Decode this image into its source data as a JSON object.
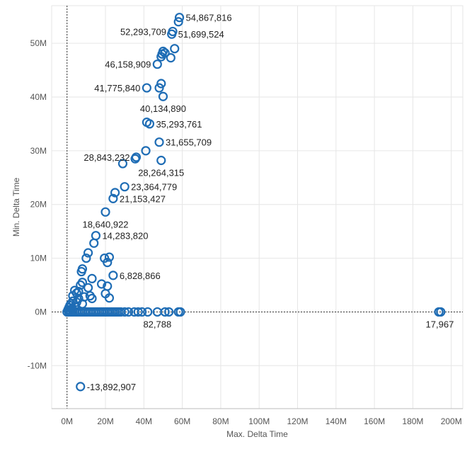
{
  "chart_data": {
    "type": "scatter",
    "title": "",
    "xlabel": "Max. Delta Time",
    "ylabel": "Min. Delta Time",
    "xlim": [
      -8,
      206
    ],
    "ylim": [
      -18,
      57
    ],
    "units": "M",
    "x_ticks": [
      "0M",
      "20M",
      "40M",
      "60M",
      "80M",
      "100M",
      "120M",
      "140M",
      "160M",
      "180M",
      "200M"
    ],
    "x_tick_values": [
      0,
      20,
      40,
      60,
      80,
      100,
      120,
      140,
      160,
      180,
      200
    ],
    "y_ticks": [
      "-10M",
      "0M",
      "10M",
      "20M",
      "30M",
      "40M",
      "50M"
    ],
    "y_tick_values": [
      -10,
      0,
      10,
      20,
      30,
      40,
      50
    ],
    "grid": true,
    "zero_lines": "dotted",
    "marker": "hollow-circle",
    "series": [
      {
        "color": "#1f6db5",
        "points": [
          [
            58.5,
            54.8
          ],
          [
            58,
            54.0
          ],
          [
            55,
            52.2
          ],
          [
            54.5,
            51.7
          ],
          [
            56,
            49.0
          ],
          [
            50,
            48.5
          ],
          [
            49.5,
            48.0
          ],
          [
            51,
            48.2
          ],
          [
            49,
            47.5
          ],
          [
            54,
            47.3
          ],
          [
            47,
            46.1
          ],
          [
            49,
            42.5
          ],
          [
            48,
            41.7
          ],
          [
            41.5,
            41.7
          ],
          [
            50,
            40.1
          ],
          [
            41.5,
            35.3
          ],
          [
            43,
            35.0
          ],
          [
            48,
            31.6
          ],
          [
            41,
            30.0
          ],
          [
            36,
            28.8
          ],
          [
            35.5,
            28.5
          ],
          [
            49,
            28.2
          ],
          [
            29,
            27.6
          ],
          [
            30,
            23.3
          ],
          [
            25,
            22.2
          ],
          [
            24,
            21.1
          ],
          [
            20,
            18.6
          ],
          [
            15,
            14.2
          ],
          [
            14,
            12.8
          ],
          [
            11,
            11.0
          ],
          [
            10,
            10.0
          ],
          [
            22,
            10.2
          ],
          [
            19.5,
            10.0
          ],
          [
            21,
            9.2
          ],
          [
            8,
            8.0
          ],
          [
            7.5,
            7.5
          ],
          [
            24,
            6.8
          ],
          [
            13,
            6.2
          ],
          [
            8,
            5.5
          ],
          [
            7,
            5.0
          ],
          [
            18,
            5.2
          ],
          [
            21,
            4.8
          ],
          [
            11,
            4.5
          ],
          [
            4,
            4.0
          ],
          [
            6,
            3.8
          ],
          [
            20,
            3.4
          ],
          [
            12,
            3.0
          ],
          [
            5,
            3.5
          ],
          [
            3,
            3.0
          ],
          [
            6,
            2.5
          ],
          [
            9,
            2.8
          ],
          [
            13,
            2.5
          ],
          [
            22,
            2.6
          ],
          [
            3,
            2.0
          ],
          [
            5,
            1.8
          ],
          [
            8,
            1.5
          ],
          [
            2,
            1.5
          ],
          [
            1.5,
            1.2
          ],
          [
            4,
            1.0
          ],
          [
            1,
            0.8
          ],
          [
            2.5,
            0.6
          ],
          [
            0.5,
            0.4
          ],
          [
            1.5,
            0.3
          ],
          [
            3,
            0.2
          ],
          [
            0,
            0
          ],
          [
            1,
            0
          ],
          [
            2,
            0
          ],
          [
            3,
            0
          ],
          [
            4,
            0
          ],
          [
            5,
            0
          ],
          [
            6,
            0
          ],
          [
            7,
            0
          ],
          [
            8,
            0
          ],
          [
            9,
            0
          ],
          [
            10,
            0
          ],
          [
            11,
            0
          ],
          [
            12,
            0
          ],
          [
            13,
            0
          ],
          [
            14,
            0
          ],
          [
            15,
            0
          ],
          [
            16,
            0
          ],
          [
            17,
            0
          ],
          [
            18,
            0
          ],
          [
            19,
            0
          ],
          [
            20,
            0
          ],
          [
            21,
            0
          ],
          [
            22,
            0
          ],
          [
            23,
            0
          ],
          [
            24,
            0
          ],
          [
            25,
            0
          ],
          [
            26,
            0
          ],
          [
            27,
            0
          ],
          [
            28,
            0
          ],
          [
            30,
            0
          ],
          [
            32,
            0
          ],
          [
            35,
            0
          ],
          [
            37,
            0
          ],
          [
            39,
            0
          ],
          [
            42,
            0
          ],
          [
            47,
            0
          ],
          [
            51,
            0
          ],
          [
            53,
            0
          ],
          [
            58,
            0
          ],
          [
            59,
            0
          ],
          [
            193.5,
            0
          ],
          [
            194.5,
            0
          ],
          [
            7,
            -13.9
          ]
        ]
      }
    ],
    "annotations": [
      {
        "text": "54,867,816",
        "x": 58.5,
        "y": 54.8,
        "side": "right"
      },
      {
        "text": "52,293,709",
        "x": 55,
        "y": 52.2,
        "side": "left"
      },
      {
        "text": "51,699,524",
        "x": 54.5,
        "y": 51.7,
        "side": "right"
      },
      {
        "text": "46,158,909",
        "x": 47,
        "y": 46.1,
        "side": "left"
      },
      {
        "text": "41,775,840",
        "x": 41.5,
        "y": 41.7,
        "side": "left"
      },
      {
        "text": "40,134,890",
        "x": 50,
        "y": 40.1,
        "side": "below"
      },
      {
        "text": "35,293,761",
        "x": 43,
        "y": 35.0,
        "side": "right"
      },
      {
        "text": "31,655,709",
        "x": 48,
        "y": 31.6,
        "side": "right"
      },
      {
        "text": "28,843,232",
        "x": 36,
        "y": 28.8,
        "side": "left"
      },
      {
        "text": "28,264,315",
        "x": 49,
        "y": 28.2,
        "side": "below"
      },
      {
        "text": "23,364,779",
        "x": 30,
        "y": 23.3,
        "side": "right"
      },
      {
        "text": "21,153,427",
        "x": 24,
        "y": 21.1,
        "side": "right"
      },
      {
        "text": "18,640,922",
        "x": 20,
        "y": 18.6,
        "side": "below"
      },
      {
        "text": "14,283,820",
        "x": 15,
        "y": 14.2,
        "side": "right"
      },
      {
        "text": "6,828,866",
        "x": 24,
        "y": 6.8,
        "side": "right"
      },
      {
        "text": "82,788",
        "x": 47,
        "y": 0,
        "side": "below"
      },
      {
        "text": "17,967",
        "x": 194,
        "y": 0,
        "side": "below"
      },
      {
        "text": "-13,892,907",
        "x": 7,
        "y": -13.9,
        "side": "right"
      }
    ]
  },
  "colors": {
    "point": "#1f6db5",
    "grid": "#e6e6e6",
    "axis": "#333333",
    "tick_text": "#555555",
    "label_text": "#222222"
  }
}
